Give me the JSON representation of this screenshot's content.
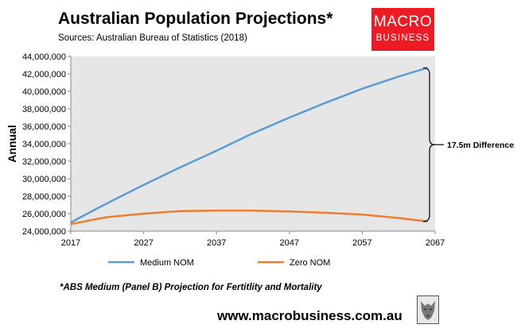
{
  "header": {
    "title": "Australian Population Projections*",
    "sources": "Sources: Australian Bureau of Statistics (2018)"
  },
  "logo": {
    "line1": "MACRO",
    "line2": "BUSINESS",
    "bg_color": "#ed1c24"
  },
  "footnote": "*ABS Medium (Panel B) Projection for Fertitlity and Mortality",
  "website": "www.macrobusiness.com.au",
  "wolf_icon": "wolf-logo-icon",
  "chart_data": {
    "type": "line",
    "title": "Australian Population Projections*",
    "xlabel": "",
    "ylabel": "Annual",
    "xlim": [
      2017,
      2067
    ],
    "ylim": [
      24000000,
      44000000
    ],
    "x_ticks": [
      "2017",
      "2027",
      "2037",
      "2047",
      "2057",
      "2067"
    ],
    "y_ticks": [
      "24,000,000",
      "26,000,000",
      "28,000,000",
      "30,000,000",
      "32,000,000",
      "34,000,000",
      "36,000,000",
      "38,000,000",
      "40,000,000",
      "42,000,000",
      "44,000,000"
    ],
    "grid": false,
    "legend_position": "bottom",
    "plot_background": "#e6e6e6",
    "series": [
      {
        "name": "Medium NOM",
        "color": "#5b9bd5",
        "x": [
          2017,
          2022,
          2027,
          2032,
          2037,
          2042,
          2047,
          2052,
          2057,
          2062,
          2066
        ],
        "values": [
          25000000,
          27200000,
          29300000,
          31300000,
          33200000,
          35200000,
          37000000,
          38700000,
          40300000,
          41700000,
          42700000
        ]
      },
      {
        "name": "Zero NOM",
        "color": "#ed7d31",
        "x": [
          2017,
          2020,
          2022,
          2027,
          2032,
          2037,
          2042,
          2047,
          2052,
          2057,
          2062,
          2066
        ],
        "values": [
          24800000,
          25300000,
          25600000,
          26000000,
          26300000,
          26350000,
          26350000,
          26250000,
          26100000,
          25900000,
          25500000,
          25100000
        ]
      }
    ],
    "annotation": "17.5m Difference"
  }
}
